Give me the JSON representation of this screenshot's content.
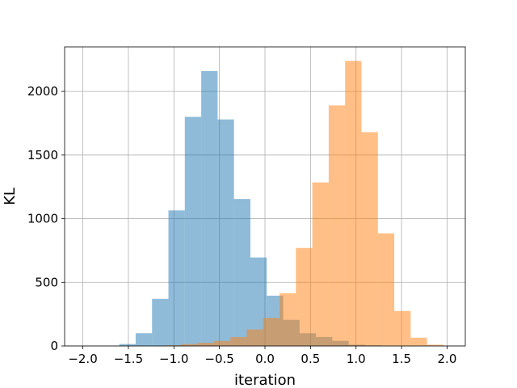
{
  "chart_data": {
    "type": "bar",
    "title": "",
    "xlabel": "iteration",
    "ylabel": "KL",
    "xlim": [
      -2.2,
      2.2
    ],
    "ylim": [
      0,
      2350
    ],
    "xticks": [
      -2.0,
      -1.5,
      -1.0,
      -0.5,
      0.0,
      0.5,
      1.0,
      1.5,
      2.0
    ],
    "xtick_labels": [
      "−2.0",
      "−1.5",
      "−1.0",
      "−0.5",
      "0.0",
      "0.5",
      "1.0",
      "1.5",
      "2.0"
    ],
    "yticks": [
      0,
      500,
      1000,
      1500,
      2000
    ],
    "ytick_labels": [
      "0",
      "500",
      "1000",
      "1500",
      "2000"
    ],
    "grid": true,
    "legend": "none",
    "series": [
      {
        "color": "#1f77b4",
        "opacity": 0.5,
        "bins": [
          [
            -1.6,
            -1.42,
            15
          ],
          [
            -1.42,
            -1.24,
            100
          ],
          [
            -1.24,
            -1.06,
            370
          ],
          [
            -1.06,
            -0.88,
            1065
          ],
          [
            -0.88,
            -0.7,
            1800
          ],
          [
            -0.7,
            -0.52,
            2160
          ],
          [
            -0.52,
            -0.34,
            1780
          ],
          [
            -0.34,
            -0.16,
            1155
          ],
          [
            -0.16,
            0.02,
            695
          ],
          [
            0.02,
            0.2,
            395
          ],
          [
            0.2,
            0.38,
            205
          ],
          [
            0.38,
            0.56,
            100
          ],
          [
            0.56,
            0.74,
            70
          ],
          [
            0.74,
            0.92,
            40
          ],
          [
            0.92,
            1.1,
            10
          ],
          [
            1.1,
            1.28,
            5
          ]
        ]
      },
      {
        "color": "#ff7f0e",
        "opacity": 0.5,
        "bins": [
          [
            -1.1,
            -0.92,
            5
          ],
          [
            -0.92,
            -0.74,
            15
          ],
          [
            -0.74,
            -0.56,
            25
          ],
          [
            -0.56,
            -0.38,
            40
          ],
          [
            -0.38,
            -0.2,
            70
          ],
          [
            -0.2,
            -0.02,
            130
          ],
          [
            -0.02,
            0.16,
            220
          ],
          [
            0.16,
            0.34,
            415
          ],
          [
            0.34,
            0.52,
            770
          ],
          [
            0.52,
            0.7,
            1285
          ],
          [
            0.7,
            0.88,
            1890
          ],
          [
            0.88,
            1.06,
            2240
          ],
          [
            1.06,
            1.24,
            1680
          ],
          [
            1.24,
            1.42,
            885
          ],
          [
            1.42,
            1.6,
            275
          ],
          [
            1.6,
            1.78,
            65
          ],
          [
            1.78,
            1.96,
            10
          ]
        ]
      }
    ]
  }
}
